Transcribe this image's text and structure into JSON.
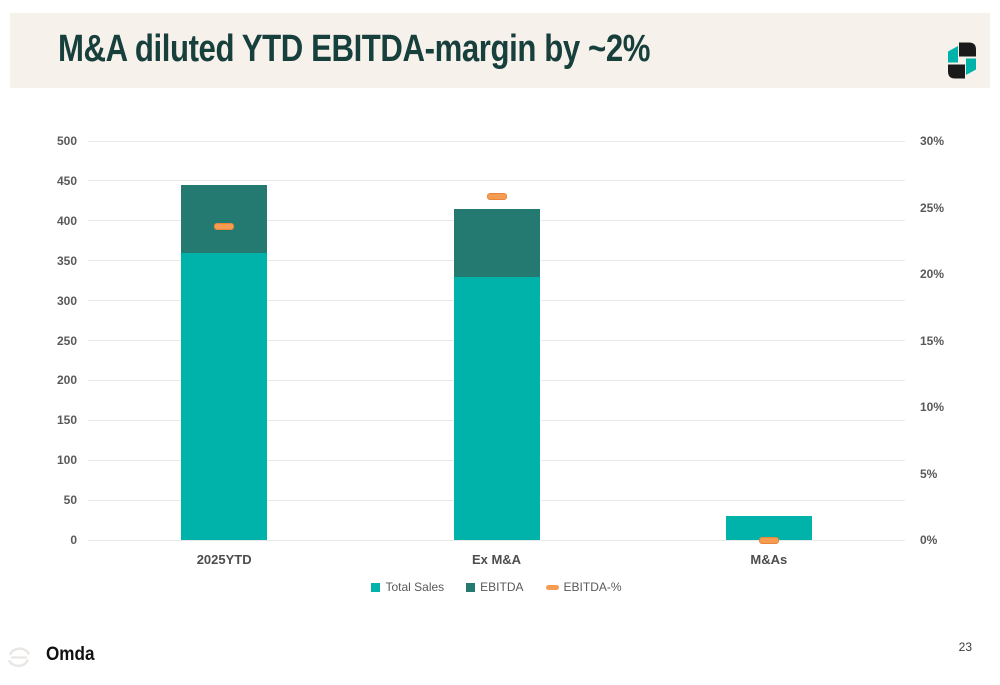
{
  "title_bar": {
    "title": "M&A diluted YTD EBITDA-margin by ~2%"
  },
  "footer": {
    "brand": "Omda",
    "page_number": "23"
  },
  "icons": {
    "header_logo": "omda-logo-icon",
    "footer_mark": "omda-swirl-icon"
  },
  "colors": {
    "teal": "#00B3AA",
    "dark_teal": "#247A70",
    "orange": "#F49C52",
    "orange_border": "#E8873B",
    "title_text": "#173F3C",
    "band_bg": "#F7F1EC",
    "axis_text": "#595959",
    "gridline": "#E9E9E9",
    "logo_black": "#1A1A1A"
  },
  "chart_data": {
    "type": "bar",
    "stacked": true,
    "title": "",
    "categories": [
      "2025YTD",
      "Ex M&A",
      "M&As"
    ],
    "series": [
      {
        "name": "Total Sales",
        "style": "bar",
        "axis": "left",
        "color_key": "teal",
        "values": [
          360,
          330,
          30
        ]
      },
      {
        "name": "EBITDA",
        "style": "bar",
        "axis": "left",
        "color_key": "dark_teal",
        "values": [
          85,
          85,
          0
        ]
      },
      {
        "name": "EBITDA-%",
        "style": "dash-marker",
        "axis": "right",
        "color_key": "orange",
        "values": [
          23.6,
          25.8,
          0
        ]
      }
    ],
    "left_axis": {
      "min": 0,
      "max": 500,
      "step": 50,
      "ticks": [
        "0",
        "50",
        "100",
        "150",
        "200",
        "250",
        "300",
        "350",
        "400",
        "450",
        "500"
      ]
    },
    "right_axis": {
      "min": 0,
      "max": 30,
      "step": 5,
      "ticks": [
        "0%",
        "5%",
        "10%",
        "15%",
        "20%",
        "25%",
        "30%"
      ]
    },
    "legend": [
      {
        "label": "Total Sales",
        "swatch": "square",
        "color_key": "teal"
      },
      {
        "label": "EBITDA",
        "swatch": "square",
        "color_key": "dark_teal"
      },
      {
        "label": "EBITDA-%",
        "swatch": "dash",
        "color_key": "orange"
      }
    ],
    "grid": "horizontal",
    "legend_position": "bottom-center"
  }
}
